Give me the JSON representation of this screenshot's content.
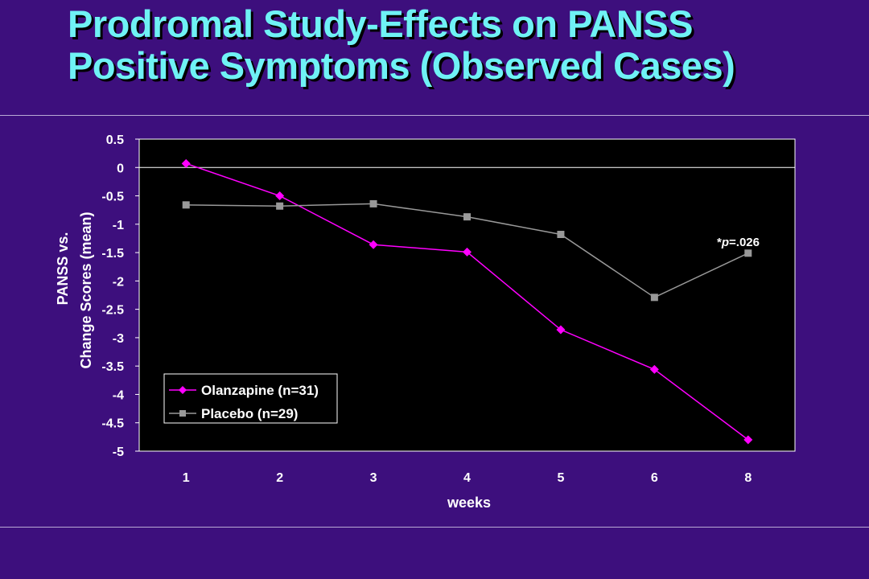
{
  "slide": {
    "title_line1": "Prodromal Study-Effects on PANSS",
    "title_line2": "Positive Symptoms (Observed Cases)",
    "title_color": "#6ff2f5",
    "background_color": "#3d0f7d"
  },
  "chart_data": {
    "type": "line",
    "categories": [
      "1",
      "2",
      "3",
      "4",
      "5",
      "6",
      "8"
    ],
    "series": [
      {
        "name": "Olanzapine (n=31)",
        "color": "#ff00ff",
        "marker": "diamond",
        "values": [
          0.07,
          -0.5,
          -1.36,
          -1.49,
          -2.86,
          -3.56,
          -4.8
        ]
      },
      {
        "name": "Placebo (n=29)",
        "color": "#999999",
        "marker": "square",
        "values": [
          -0.66,
          -0.68,
          -0.64,
          -0.87,
          -1.18,
          -2.29,
          -1.51
        ]
      }
    ],
    "xlabel": "weeks",
    "ylabel_line1": "PANSS vs.",
    "ylabel_line2": "Change Scores (mean)",
    "ylim": [
      -5,
      0.5
    ],
    "yticks": [
      "0.5",
      "0",
      "-0.5",
      "-1",
      "-1.5",
      "-2",
      "-2.5",
      "-3",
      "-3.5",
      "-4",
      "-4.5",
      "-5"
    ],
    "grid": false,
    "zero_line": true,
    "plot_background": "#000000",
    "legend_position": "bottom-left",
    "annotation": {
      "prefix": "*",
      "italic": "p",
      "suffix": "=.026"
    }
  }
}
